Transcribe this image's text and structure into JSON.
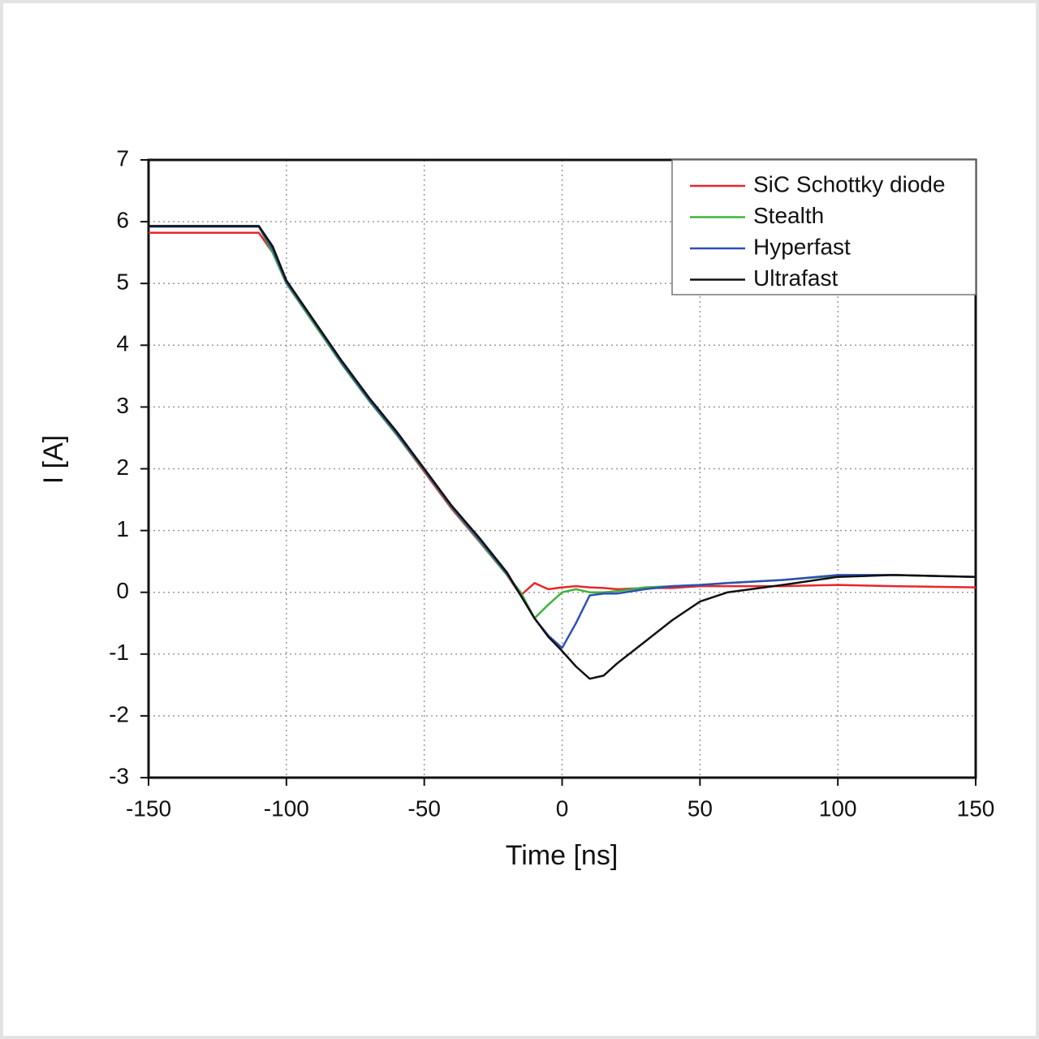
{
  "chart_data": {
    "type": "line",
    "xlabel": "Time [ns]",
    "ylabel": "I [A]",
    "x": [
      -150,
      -110,
      -105,
      -100,
      -90,
      -80,
      -70,
      -60,
      -50,
      -40,
      -30,
      -20,
      -15,
      -10,
      -5,
      0,
      5,
      10,
      15,
      20,
      30,
      40,
      50,
      60,
      80,
      100,
      120,
      150
    ],
    "series": [
      {
        "name": "SiC Schottky diode",
        "color": "#e8262b",
        "values": [
          5.82,
          5.82,
          5.5,
          5.0,
          4.35,
          3.7,
          3.1,
          2.55,
          1.95,
          1.35,
          0.82,
          0.28,
          -0.05,
          0.15,
          0.05,
          0.08,
          0.1,
          0.08,
          0.07,
          0.05,
          0.07,
          0.07,
          0.1,
          0.1,
          0.1,
          0.12,
          0.1,
          0.08
        ]
      },
      {
        "name": "Stealth",
        "color": "#3db33a",
        "values": [
          5.92,
          5.92,
          5.5,
          5.0,
          4.35,
          3.7,
          3.1,
          2.55,
          1.97,
          1.37,
          0.83,
          0.28,
          0.0,
          -0.42,
          -0.2,
          0.0,
          0.05,
          0.0,
          0.0,
          0.02,
          0.08,
          0.1,
          0.12,
          0.15,
          0.2,
          0.27,
          0.28,
          0.25
        ]
      },
      {
        "name": "Hyperfast",
        "color": "#2f4fb5",
        "values": [
          5.92,
          5.92,
          5.55,
          5.02,
          4.38,
          3.72,
          3.12,
          2.57,
          1.98,
          1.38,
          0.85,
          0.3,
          -0.05,
          -0.42,
          -0.7,
          -0.9,
          -0.5,
          -0.05,
          -0.02,
          -0.02,
          0.05,
          0.1,
          0.12,
          0.15,
          0.2,
          0.28,
          0.28,
          0.25
        ]
      },
      {
        "name": "Ultrafast",
        "color": "#111111",
        "values": [
          5.93,
          5.93,
          5.6,
          5.05,
          4.4,
          3.75,
          3.15,
          2.6,
          2.0,
          1.4,
          0.88,
          0.32,
          -0.05,
          -0.42,
          -0.72,
          -0.95,
          -1.2,
          -1.4,
          -1.35,
          -1.15,
          -0.8,
          -0.45,
          -0.15,
          0.0,
          0.12,
          0.25,
          0.28,
          0.25
        ]
      }
    ],
    "xlim": [
      -150,
      150
    ],
    "xticks": [
      -150,
      -100,
      -50,
      0,
      50,
      100,
      150
    ],
    "ylim": [
      -3,
      7
    ],
    "yticks": [
      -3,
      -2,
      -1,
      0,
      1,
      2,
      3,
      4,
      5,
      6,
      7
    ],
    "grid": true,
    "legend": "upper right"
  }
}
